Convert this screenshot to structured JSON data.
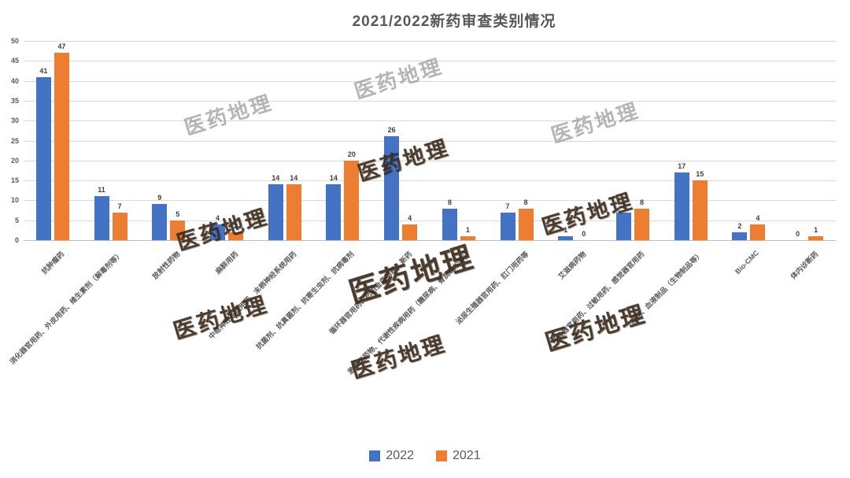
{
  "title": "2021/2022新药审查类别情况",
  "watermark": {
    "text": "医药地理"
  },
  "legend": {
    "items": [
      {
        "label": "2022",
        "color": "#4472C4"
      },
      {
        "label": "2021",
        "color": "#ED7D31"
      }
    ]
  },
  "chart_data": {
    "type": "bar",
    "title": "2021/2022新药审查类别情况",
    "categories": [
      "抗肿瘤药",
      "消化器官用药、外皮用药、维生素剂（解毒剂等）",
      "放射性药物",
      "麻醉用药",
      "中枢神经系统用药、末梢神经系统用药",
      "抗菌剂、抗真菌剂、抗寄生虫剂、抗病毒剂",
      "循环器官用药、抗帕金森病药、新药",
      "激素类药物、代谢性疾病用药（糖尿病、骨质疏松等）",
      "泌尿生殖器官用药、肛门用药等",
      "艾滋病药物",
      "呼吸器官用药、过敏用药、感觉器官用药",
      "疫苗、血液制品（生物制品等）",
      "Bio-CMC",
      "体内诊断药"
    ],
    "series": [
      {
        "name": "2022",
        "color": "#4472C4",
        "values": [
          41,
          11,
          9,
          4,
          14,
          14,
          26,
          8,
          7,
          1,
          7,
          17,
          2,
          0
        ]
      },
      {
        "name": "2021",
        "color": "#ED7D31",
        "values": [
          47,
          7,
          5,
          2,
          14,
          20,
          4,
          1,
          8,
          0,
          8,
          15,
          4,
          1
        ]
      }
    ],
    "xlabel": "",
    "ylabel": "",
    "ylim": [
      0,
      50
    ],
    "ytick_step": 5,
    "grid": true,
    "legend_position": "bottom",
    "colors": {
      "gridline": "#D9D9D9",
      "axis_text": "#595959",
      "data_label": "#404040",
      "background": "#FFFFFF"
    }
  }
}
